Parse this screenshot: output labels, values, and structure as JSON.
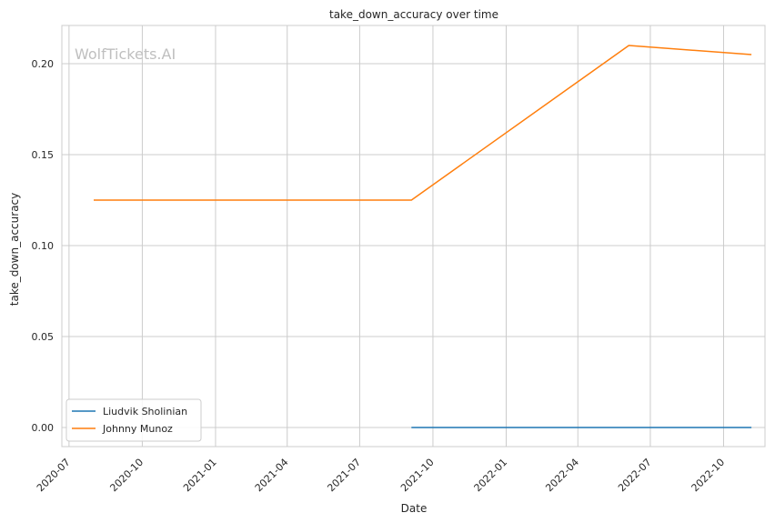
{
  "chart_data": {
    "type": "line",
    "title": "take_down_accuracy over time",
    "xlabel": "Date",
    "ylabel": "take_down_accuracy",
    "watermark": "WolfTickets.AI",
    "grid": true,
    "legend_position": "lower-left",
    "xlim": [
      "2020-06-22",
      "2022-11-22"
    ],
    "ylim": [
      -0.0105,
      0.221
    ],
    "x_ticks": [
      "2020-07",
      "2020-10",
      "2021-01",
      "2021-04",
      "2021-07",
      "2021-10",
      "2022-01",
      "2022-04",
      "2022-07",
      "2022-10"
    ],
    "y_ticks": [
      "0.00",
      "0.05",
      "0.10",
      "0.15",
      "0.20"
    ],
    "y_tick_values": [
      0.0,
      0.05,
      0.1,
      0.15,
      0.2
    ],
    "series": [
      {
        "name": "Liudvik Sholinian",
        "color": "#1f77b4",
        "points": [
          {
            "x": "2021-09-04",
            "y": 0.0
          },
          {
            "x": "2022-11-05",
            "y": 0.0
          }
        ]
      },
      {
        "name": "Johnny Munoz",
        "color": "#ff7f0e",
        "points": [
          {
            "x": "2020-08-01",
            "y": 0.125
          },
          {
            "x": "2021-09-04",
            "y": 0.125
          },
          {
            "x": "2022-06-04",
            "y": 0.21
          },
          {
            "x": "2022-11-05",
            "y": 0.205
          }
        ]
      }
    ]
  }
}
